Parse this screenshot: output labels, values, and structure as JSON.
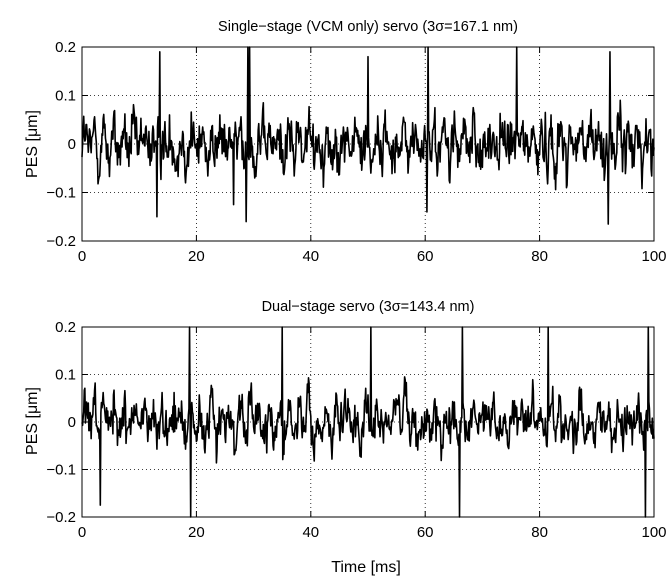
{
  "figure": {
    "xlabel": "Time [ms]"
  },
  "chart_data": [
    {
      "type": "line",
      "title": "Single−stage (VCM only) servo (3σ=167.1 nm)",
      "xlabel": "",
      "ylabel": "PES [μm]",
      "xlim": [
        0,
        100
      ],
      "ylim": [
        -0.2,
        0.2
      ],
      "xticks": [
        0,
        20,
        40,
        60,
        80,
        100
      ],
      "xtick_labels": [
        "0",
        "20",
        "40",
        "60",
        "80",
        "100"
      ],
      "yticks": [
        -0.2,
        -0.1,
        0,
        0.1,
        0.2
      ],
      "ytick_labels": [
        "−0.2",
        "−0.1",
        "0",
        "0.1",
        "0.2"
      ],
      "grid": "dotted",
      "line_color": "#000000",
      "sample_step": 0.1,
      "peaks": [
        [
          13.1,
          -0.15
        ],
        [
          13.6,
          0.19
        ],
        [
          26.5,
          -0.125
        ],
        [
          28.7,
          -0.16
        ],
        [
          29.0,
          0.2
        ],
        [
          29.3,
          0.2
        ],
        [
          50.0,
          0.18
        ],
        [
          60.3,
          -0.14
        ],
        [
          60.5,
          0.2
        ],
        [
          76.0,
          0.2
        ],
        [
          92.0,
          -0.165
        ],
        [
          92.3,
          0.19
        ]
      ],
      "series": [
        {
          "values": []
        }
      ]
    },
    {
      "type": "line",
      "title": "Dual−stage servo (3σ=143.4 nm)",
      "xlabel": "Time [ms]",
      "ylabel": "PES [μm]",
      "xlim": [
        0,
        100
      ],
      "ylim": [
        -0.2,
        0.2
      ],
      "xticks": [
        0,
        20,
        40,
        60,
        80,
        100
      ],
      "xtick_labels": [
        "0",
        "20",
        "40",
        "60",
        "80",
        "100"
      ],
      "yticks": [
        -0.2,
        -0.1,
        0,
        0.1,
        0.2
      ],
      "ytick_labels": [
        "−0.2",
        "−0.1",
        "0",
        "0.1",
        "0.2"
      ],
      "grid": "dotted",
      "line_color": "#000000",
      "sample_step": 0.1,
      "peaks": [
        [
          3.2,
          -0.175
        ],
        [
          18.8,
          0.2
        ],
        [
          19.0,
          -0.2
        ],
        [
          35.0,
          0.2
        ],
        [
          50.5,
          0.2
        ],
        [
          66.0,
          -0.2
        ],
        [
          66.5,
          0.2
        ],
        [
          81.5,
          0.2
        ],
        [
          98.5,
          -0.2
        ],
        [
          99.0,
          0.2
        ]
      ],
      "series": [
        {
          "values": []
        }
      ]
    }
  ]
}
